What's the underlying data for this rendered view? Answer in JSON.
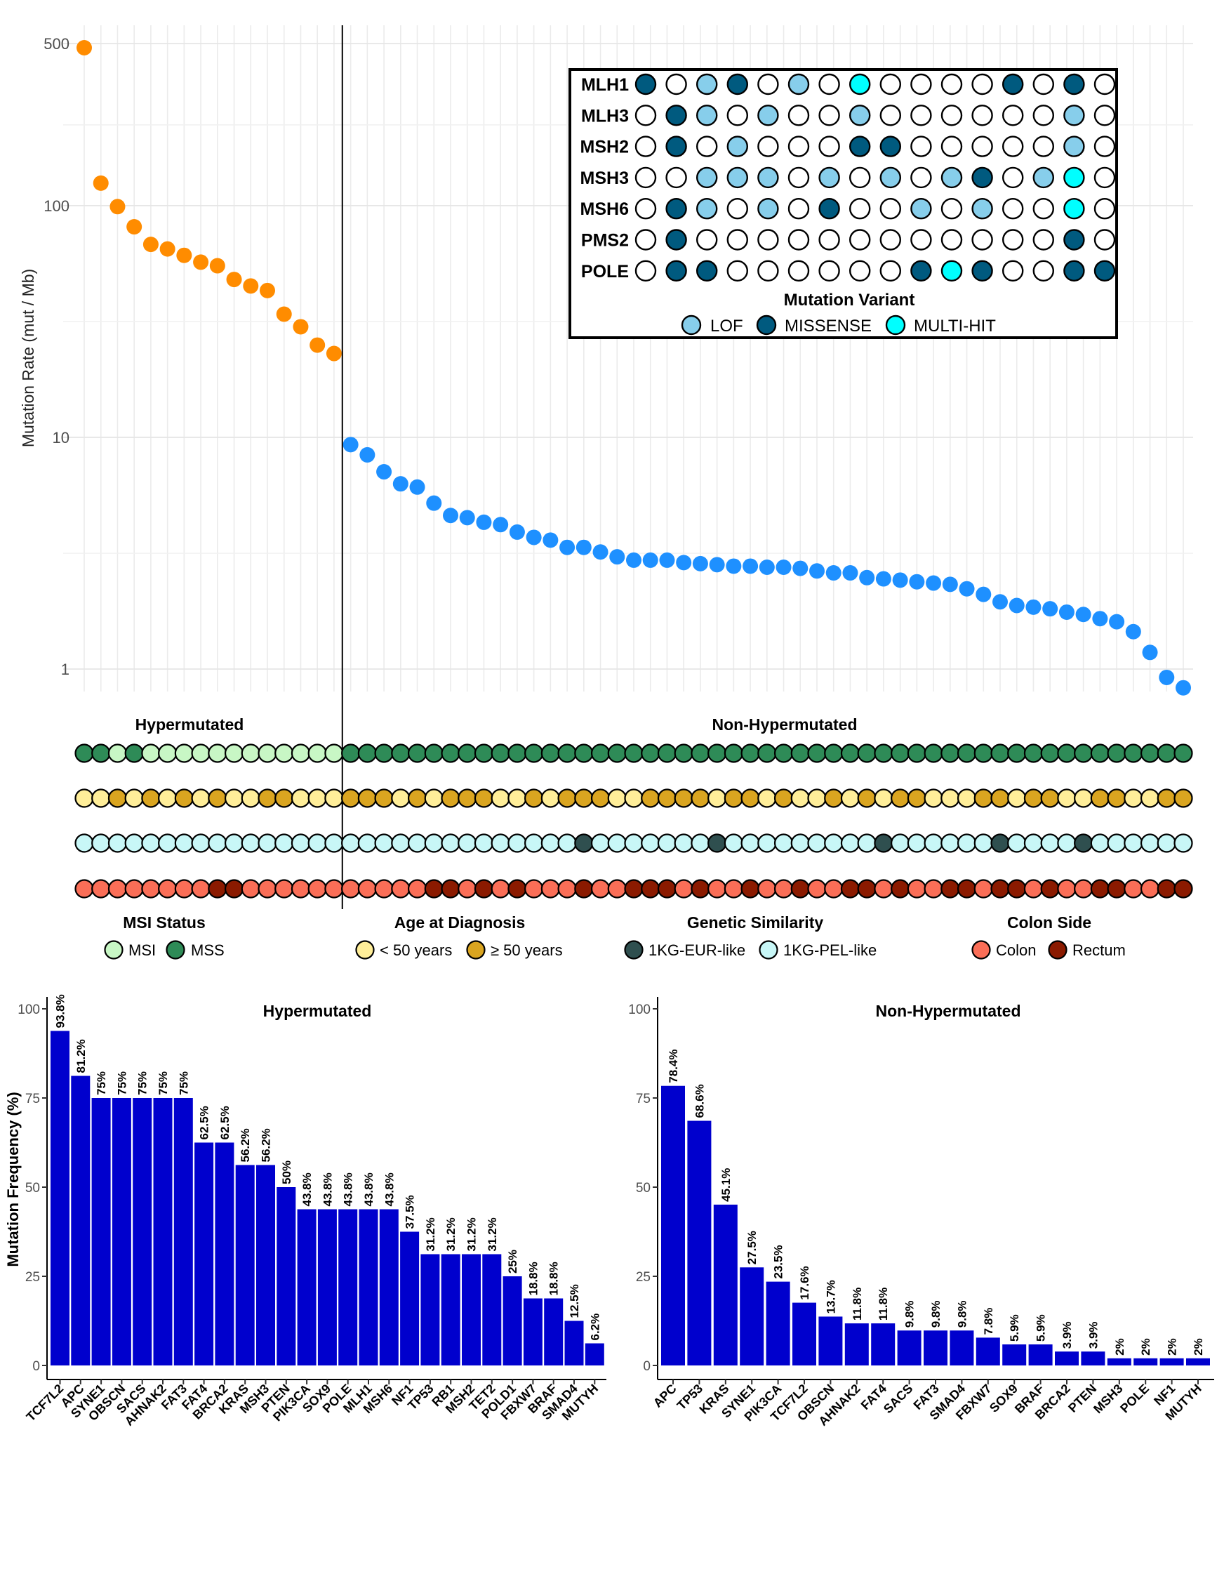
{
  "chart_data": [
    {
      "type": "scatter",
      "ylabel": "Mutation Rate  (mut / Mb)",
      "yscale": "log",
      "ylim": [
        0.8,
        600
      ],
      "yticks": [
        "1",
        "10",
        "100",
        "500"
      ],
      "grid": true,
      "groups": {
        "hyper": "Hypermutated",
        "nonhyper": "Non-Hypermutated"
      },
      "colors": {
        "hyper": "#ff8c00",
        "nonhyper": "#1e90ff"
      },
      "hyper_values": [
        480,
        125,
        99,
        81,
        68,
        65,
        61,
        57,
        55,
        48,
        45,
        43,
        34,
        30,
        25,
        23
      ],
      "nonhyper_values": [
        9.3,
        8.4,
        7.1,
        6.3,
        6.1,
        5.2,
        4.6,
        4.5,
        4.3,
        4.2,
        3.9,
        3.7,
        3.6,
        3.35,
        3.35,
        3.2,
        3.05,
        2.95,
        2.95,
        2.95,
        2.88,
        2.85,
        2.82,
        2.78,
        2.78,
        2.75,
        2.75,
        2.72,
        2.65,
        2.6,
        2.6,
        2.48,
        2.45,
        2.42,
        2.38,
        2.35,
        2.32,
        2.22,
        2.1,
        1.95,
        1.88,
        1.85,
        1.82,
        1.76,
        1.72,
        1.65,
        1.6,
        1.45,
        1.18,
        0.92,
        0.83
      ]
    },
    {
      "type": "table",
      "title": "Mutation Variant",
      "genes": [
        "MLH1",
        "MLH3",
        "MSH2",
        "MSH3",
        "MSH6",
        "PMS2",
        "POLE"
      ],
      "codes": [
        [
          2,
          0,
          1,
          2,
          0,
          1,
          0,
          3,
          0,
          0,
          0,
          0,
          2,
          0,
          2,
          0
        ],
        [
          0,
          2,
          1,
          0,
          1,
          0,
          0,
          1,
          0,
          0,
          0,
          0,
          0,
          0,
          1,
          0
        ],
        [
          0,
          2,
          0,
          1,
          0,
          0,
          0,
          2,
          2,
          0,
          0,
          0,
          0,
          0,
          1,
          0
        ],
        [
          0,
          0,
          1,
          1,
          1,
          0,
          1,
          0,
          1,
          0,
          1,
          2,
          0,
          1,
          3,
          0
        ],
        [
          0,
          2,
          1,
          0,
          1,
          0,
          2,
          0,
          0,
          1,
          0,
          1,
          0,
          0,
          3,
          0
        ],
        [
          0,
          2,
          0,
          0,
          0,
          0,
          0,
          0,
          0,
          0,
          0,
          0,
          0,
          0,
          2,
          0
        ],
        [
          0,
          2,
          2,
          0,
          0,
          0,
          0,
          0,
          0,
          2,
          3,
          2,
          0,
          0,
          2,
          2
        ]
      ],
      "legend": [
        "LOF",
        "MISSENSE",
        "MULTI-HIT"
      ],
      "colors": [
        "#ffffff",
        "#87ceeb",
        "#005a7f",
        "#00ffff"
      ]
    },
    {
      "type": "table",
      "tracks": [
        {
          "title": "MSI Status",
          "labels": [
            "MSI",
            "MSS"
          ],
          "colors": [
            "#c8f7c5",
            "#2e8b57"
          ],
          "codes": [
            1,
            1,
            0,
            1,
            0,
            0,
            0,
            0,
            0,
            0,
            0,
            0,
            0,
            0,
            0,
            0,
            1,
            1,
            1,
            1,
            1,
            1,
            1,
            1,
            1,
            1,
            1,
            1,
            1,
            1,
            1,
            1,
            1,
            1,
            1,
            1,
            1,
            1,
            1,
            1,
            1,
            1,
            1,
            1,
            1,
            1,
            1,
            1,
            1,
            1,
            1,
            1,
            1,
            1,
            1,
            1,
            1,
            1,
            1,
            1,
            1,
            1,
            1,
            1,
            1,
            1,
            1
          ]
        },
        {
          "title": "Age at Diagnosis",
          "labels": [
            "< 50 years",
            "≥ 50 years"
          ],
          "colors": [
            "#ffee99",
            "#daa520"
          ],
          "codes": [
            0,
            0,
            1,
            0,
            1,
            0,
            1,
            0,
            1,
            0,
            0,
            1,
            1,
            0,
            0,
            0,
            1,
            1,
            1,
            0,
            1,
            0,
            1,
            1,
            1,
            0,
            0,
            1,
            0,
            1,
            1,
            1,
            0,
            0,
            1,
            1,
            1,
            1,
            0,
            1,
            1,
            0,
            1,
            0,
            0,
            1,
            0,
            1,
            0,
            1,
            1,
            0,
            0,
            0,
            1,
            1,
            0,
            1,
            1,
            0,
            0,
            1,
            1,
            0,
            0,
            1,
            1
          ]
        },
        {
          "title": "Genetic Similarity",
          "labels": [
            "1KG-EUR-like",
            "1KG-PEL-like"
          ],
          "colors": [
            "#2f4f4f",
            "#c8f7f7"
          ],
          "codes": [
            1,
            1,
            1,
            1,
            1,
            1,
            1,
            1,
            1,
            1,
            1,
            1,
            1,
            1,
            1,
            1,
            1,
            1,
            1,
            1,
            1,
            1,
            1,
            1,
            1,
            1,
            1,
            1,
            1,
            1,
            0,
            1,
            1,
            1,
            1,
            1,
            1,
            1,
            0,
            1,
            1,
            1,
            1,
            1,
            1,
            1,
            1,
            1,
            0,
            1,
            1,
            1,
            1,
            1,
            1,
            0,
            1,
            1,
            1,
            1,
            0,
            1,
            1,
            1,
            1,
            1,
            1
          ]
        },
        {
          "title": "Colon Side",
          "labels": [
            "Colon",
            "Rectum"
          ],
          "colors": [
            "#fa6e57",
            "#8b1a00"
          ],
          "codes": [
            0,
            0,
            0,
            0,
            0,
            0,
            0,
            0,
            1,
            1,
            0,
            0,
            0,
            0,
            0,
            0,
            0,
            0,
            0,
            0,
            0,
            1,
            1,
            0,
            1,
            0,
            1,
            0,
            0,
            0,
            1,
            0,
            0,
            1,
            1,
            1,
            0,
            1,
            0,
            0,
            1,
            0,
            0,
            1,
            0,
            0,
            1,
            1,
            0,
            1,
            0,
            0,
            1,
            1,
            0,
            1,
            1,
            0,
            1,
            0,
            0,
            1,
            1,
            0,
            0,
            1,
            1
          ]
        }
      ]
    },
    {
      "type": "bar",
      "title": "Hypermutated",
      "ylabel": "Mutation Frequency (%)",
      "ylim": [
        0,
        100
      ],
      "yticks": [
        "0",
        "25",
        "50",
        "75",
        "100"
      ],
      "color": "#0000cd",
      "categories": [
        "TCF7L2",
        "APC",
        "SYNE1",
        "OBSCN",
        "SACS",
        "AHNAK2",
        "FAT3",
        "FAT4",
        "BRCA2",
        "KRAS",
        "MSH3",
        "PTEN",
        "PIK3CA",
        "SOX9",
        "POLE",
        "MLH1",
        "MSH6",
        "NF1",
        "TP53",
        "RB1",
        "MSH2",
        "TET2",
        "POLD1",
        "FBXW7",
        "BRAF",
        "SMAD4",
        "MUTYH"
      ],
      "values": [
        93.8,
        81.2,
        75,
        75,
        75,
        75,
        75,
        62.5,
        62.5,
        56.2,
        56.2,
        50,
        43.8,
        43.8,
        43.8,
        43.8,
        43.8,
        37.5,
        31.2,
        31.2,
        31.2,
        31.2,
        25,
        18.8,
        18.8,
        12.5,
        6.2
      ],
      "labels": [
        "93.8%",
        "81.2%",
        "75%",
        "75%",
        "75%",
        "75%",
        "75%",
        "62.5%",
        "62.5%",
        "56.2%",
        "56.2%",
        "50%",
        "43.8%",
        "43.8%",
        "43.8%",
        "43.8%",
        "43.8%",
        "37.5%",
        "31.2%",
        "31.2%",
        "31.2%",
        "31.2%",
        "25%",
        "18.8%",
        "18.8%",
        "12.5%",
        "6.2%"
      ]
    },
    {
      "type": "bar",
      "title": "Non-Hypermutated",
      "ylim": [
        0,
        100
      ],
      "yticks": [
        "0",
        "25",
        "50",
        "75",
        "100"
      ],
      "color": "#0000cd",
      "categories": [
        "APC",
        "TP53",
        "KRAS",
        "SYNE1",
        "PIK3CA",
        "TCF7L2",
        "OBSCN",
        "AHNAK2",
        "FAT4",
        "SACS",
        "FAT3",
        "SMAD4",
        "FBXW7",
        "SOX9",
        "BRAF",
        "BRCA2",
        "PTEN",
        "MSH3",
        "POLE",
        "NF1",
        "MUTYH"
      ],
      "values": [
        78.4,
        68.6,
        45.1,
        27.5,
        23.5,
        17.6,
        13.7,
        11.8,
        11.8,
        9.8,
        9.8,
        9.8,
        7.8,
        5.9,
        5.9,
        3.9,
        3.9,
        2,
        2,
        2,
        2
      ],
      "labels": [
        "78.4%",
        "68.6%",
        "45.1%",
        "27.5%",
        "23.5%",
        "17.6%",
        "13.7%",
        "11.8%",
        "11.8%",
        "9.8%",
        "9.8%",
        "9.8%",
        "7.8%",
        "5.9%",
        "5.9%",
        "3.9%",
        "3.9%",
        "2%",
        "2%",
        "2%",
        "2%"
      ]
    }
  ]
}
